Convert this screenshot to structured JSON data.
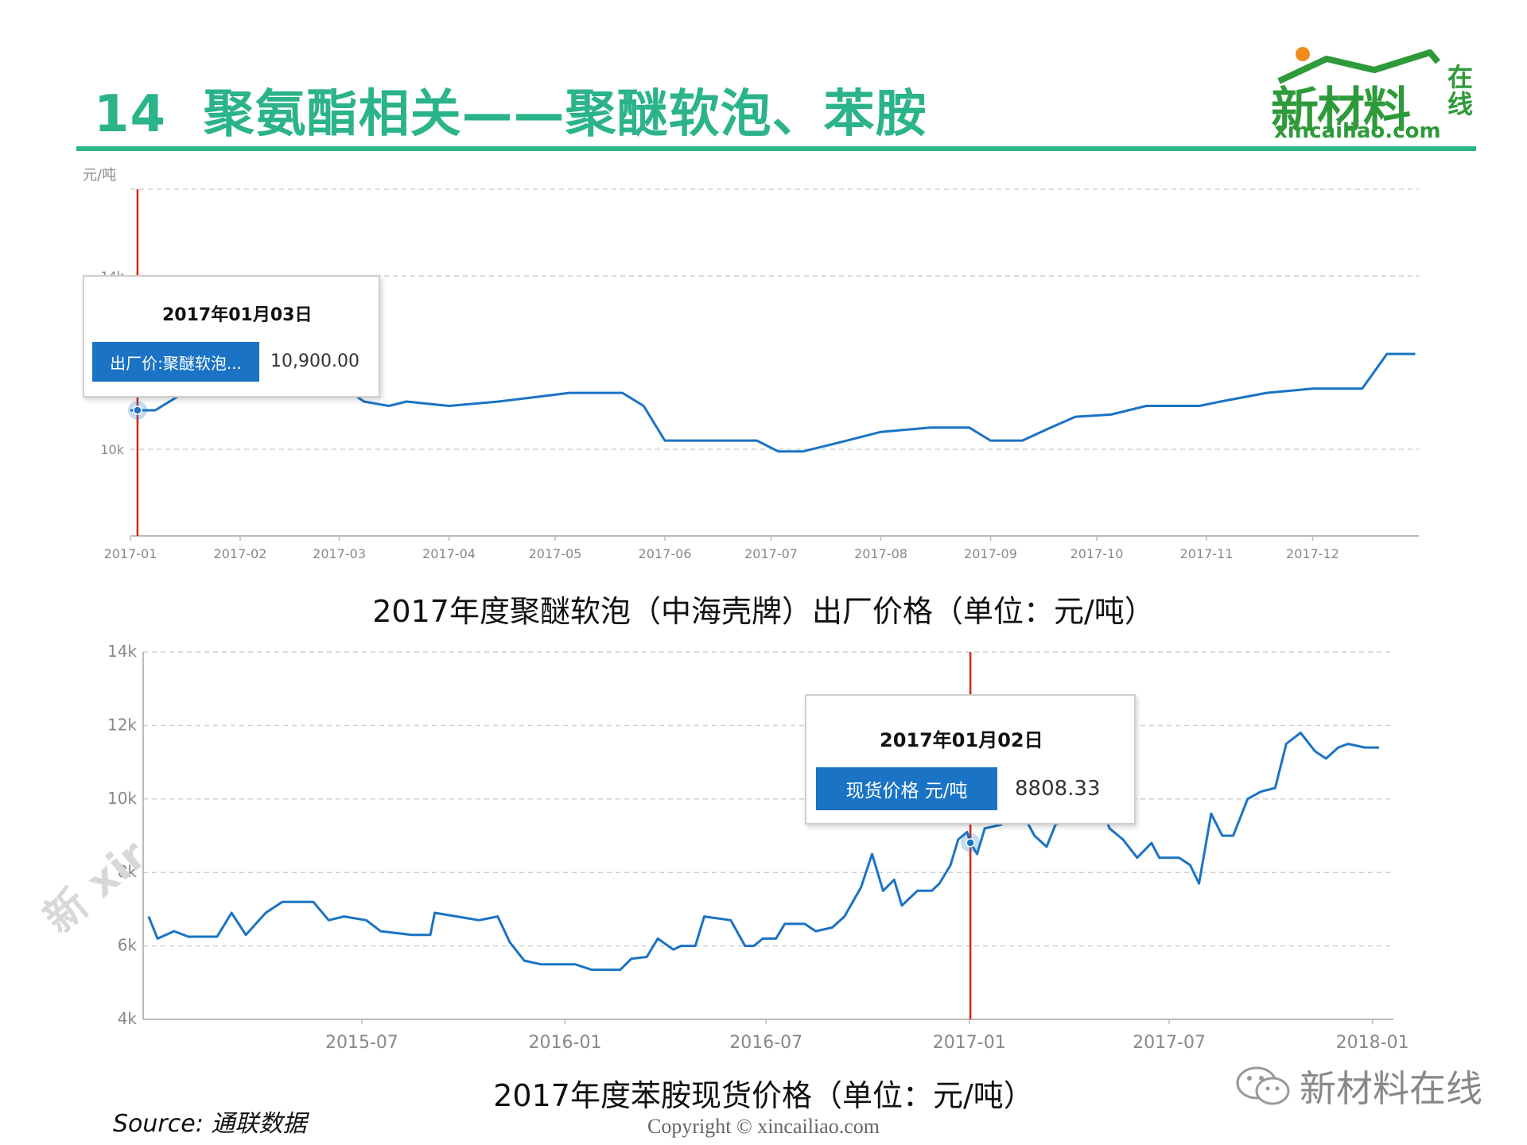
{
  "slide": {
    "number": "14",
    "title": "聚氨酯相关——聚醚软泡、苯胺"
  },
  "logo": {
    "main": "新材料",
    "side": "在线",
    "url": "xincailiao.com"
  },
  "colors": {
    "accent": "#2bb38a",
    "series": "#1a73c4",
    "marker": "#d9251c",
    "grid": "#cccccc"
  },
  "chart_data": [
    {
      "type": "line",
      "caption": "2017年度聚醚软泡（中海壳牌）出厂价格（单位：元/吨）",
      "ylabel": "元/吨",
      "y_ticks": [
        {
          "v": 10000,
          "label": "10k"
        },
        {
          "v": 14000,
          "label": "14k"
        }
      ],
      "ylim": [
        8000,
        16000
      ],
      "x_ticks": [
        {
          "t": "2017-01-01",
          "label": "2017-01"
        },
        {
          "t": "2017-02-01",
          "label": "2017-02"
        },
        {
          "t": "2017-03-01",
          "label": "2017-03"
        },
        {
          "t": "2017-04-01",
          "label": "2017-04"
        },
        {
          "t": "2017-05-01",
          "label": "2017-05"
        },
        {
          "t": "2017-06-01",
          "label": "2017-06"
        },
        {
          "t": "2017-07-01",
          "label": "2017-07"
        },
        {
          "t": "2017-08-01",
          "label": "2017-08"
        },
        {
          "t": "2017-09-01",
          "label": "2017-09"
        },
        {
          "t": "2017-10-01",
          "label": "2017-10"
        },
        {
          "t": "2017-11-01",
          "label": "2017-11"
        },
        {
          "t": "2017-12-01",
          "label": "2017-12"
        }
      ],
      "xlim": [
        "2017-01-01",
        "2017-12-31"
      ],
      "grid": "horizontal dashed",
      "series": [
        {
          "name": "出厂价:聚醚软泡...",
          "points": [
            [
              "2017-01-01",
              10900
            ],
            [
              "2017-01-08",
              10900
            ],
            [
              "2017-01-14",
              11200
            ],
            [
              "2017-01-20",
              11500
            ],
            [
              "2017-01-27",
              11700
            ],
            [
              "2017-02-05",
              11800
            ],
            [
              "2017-02-12",
              12000
            ],
            [
              "2017-02-22",
              12000
            ],
            [
              "2017-03-01",
              11500
            ],
            [
              "2017-03-08",
              11100
            ],
            [
              "2017-03-15",
              11000
            ],
            [
              "2017-03-20",
              11100
            ],
            [
              "2017-04-01",
              11000
            ],
            [
              "2017-04-15",
              11100
            ],
            [
              "2017-04-25",
              11200
            ],
            [
              "2017-05-05",
              11300
            ],
            [
              "2017-05-20",
              11300
            ],
            [
              "2017-05-26",
              11000
            ],
            [
              "2017-06-01",
              10200
            ],
            [
              "2017-06-15",
              10200
            ],
            [
              "2017-06-27",
              10200
            ],
            [
              "2017-07-03",
              9950
            ],
            [
              "2017-07-10",
              9950
            ],
            [
              "2017-07-20",
              10150
            ],
            [
              "2017-08-01",
              10400
            ],
            [
              "2017-08-15",
              10500
            ],
            [
              "2017-08-26",
              10500
            ],
            [
              "2017-09-01",
              10200
            ],
            [
              "2017-09-10",
              10200
            ],
            [
              "2017-09-18",
              10500
            ],
            [
              "2017-09-25",
              10750
            ],
            [
              "2017-10-05",
              10800
            ],
            [
              "2017-10-15",
              11000
            ],
            [
              "2017-10-30",
              11000
            ],
            [
              "2017-11-05",
              11100
            ],
            [
              "2017-11-18",
              11300
            ],
            [
              "2017-12-01",
              11400
            ],
            [
              "2017-12-15",
              11400
            ],
            [
              "2017-12-22",
              12200
            ],
            [
              "2017-12-30",
              12200
            ]
          ]
        }
      ],
      "tooltip": {
        "date": "2017年01月03日",
        "label": "出厂价:聚醚软泡...",
        "value": "10,900.00"
      }
    },
    {
      "type": "line",
      "caption": "2017年度苯胺现货价格（单位：元/吨）",
      "y_ticks": [
        {
          "v": 4000,
          "label": "4k"
        },
        {
          "v": 6000,
          "label": "6k"
        },
        {
          "v": 8000,
          "label": "8k"
        },
        {
          "v": 10000,
          "label": "10k"
        },
        {
          "v": 12000,
          "label": "12k"
        },
        {
          "v": 14000,
          "label": "14k"
        }
      ],
      "ylim": [
        4000,
        14000
      ],
      "x_ticks": [
        {
          "t": "2015-07-01",
          "label": "2015-07"
        },
        {
          "t": "2016-01-01",
          "label": "2016-01"
        },
        {
          "t": "2016-07-01",
          "label": "2016-07"
        },
        {
          "t": "2017-01-01",
          "label": "2017-01"
        },
        {
          "t": "2017-07-01",
          "label": "2017-07"
        },
        {
          "t": "2018-01-01",
          "label": "2018-01"
        }
      ],
      "xlim": [
        "2014-12-15",
        "2018-01-20"
      ],
      "grid": "horizontal dashed",
      "series": [
        {
          "name": "现货价格 元/吨",
          "points": [
            [
              "2014-12-20",
              6800
            ],
            [
              "2014-12-28",
              6200
            ],
            [
              "2015-01-12",
              6400
            ],
            [
              "2015-01-25",
              6250
            ],
            [
              "2015-02-20",
              6250
            ],
            [
              "2015-03-05",
              6900
            ],
            [
              "2015-03-18",
              6300
            ],
            [
              "2015-04-05",
              6900
            ],
            [
              "2015-04-20",
              7200
            ],
            [
              "2015-05-18",
              7200
            ],
            [
              "2015-06-01",
              6700
            ],
            [
              "2015-06-15",
              6800
            ],
            [
              "2015-07-05",
              6700
            ],
            [
              "2015-07-18",
              6400
            ],
            [
              "2015-08-15",
              6300
            ],
            [
              "2015-09-01",
              6300
            ],
            [
              "2015-09-05",
              6900
            ],
            [
              "2015-09-25",
              6800
            ],
            [
              "2015-10-15",
              6700
            ],
            [
              "2015-11-01",
              6800
            ],
            [
              "2015-11-12",
              6100
            ],
            [
              "2015-11-25",
              5600
            ],
            [
              "2015-12-10",
              5500
            ],
            [
              "2016-01-10",
              5500
            ],
            [
              "2016-01-25",
              5350
            ],
            [
              "2016-02-20",
              5350
            ],
            [
              "2016-03-01",
              5650
            ],
            [
              "2016-03-15",
              5700
            ],
            [
              "2016-03-25",
              6200
            ],
            [
              "2016-04-08",
              5900
            ],
            [
              "2016-04-15",
              6000
            ],
            [
              "2016-04-28",
              6000
            ],
            [
              "2016-05-06",
              6800
            ],
            [
              "2016-05-30",
              6700
            ],
            [
              "2016-06-12",
              6000
            ],
            [
              "2016-06-20",
              6000
            ],
            [
              "2016-06-28",
              6200
            ],
            [
              "2016-07-10",
              6200
            ],
            [
              "2016-07-18",
              6600
            ],
            [
              "2016-08-05",
              6600
            ],
            [
              "2016-08-15",
              6400
            ],
            [
              "2016-08-30",
              6500
            ],
            [
              "2016-09-10",
              6800
            ],
            [
              "2016-09-25",
              7600
            ],
            [
              "2016-10-05",
              8500
            ],
            [
              "2016-10-15",
              7500
            ],
            [
              "2016-10-25",
              7800
            ],
            [
              "2016-11-01",
              7100
            ],
            [
              "2016-11-15",
              7500
            ],
            [
              "2016-11-28",
              7500
            ],
            [
              "2016-12-05",
              7700
            ],
            [
              "2016-12-15",
              8200
            ],
            [
              "2016-12-22",
              8900
            ],
            [
              "2016-12-30",
              9100
            ],
            [
              "2017-01-02",
              8808.33
            ],
            [
              "2017-01-08",
              8500
            ],
            [
              "2017-01-15",
              9200
            ],
            [
              "2017-01-30",
              9300
            ],
            [
              "2017-02-10",
              10000
            ],
            [
              "2017-02-20",
              9500
            ],
            [
              "2017-03-01",
              9000
            ],
            [
              "2017-03-12",
              8700
            ],
            [
              "2017-03-20",
              9300
            ],
            [
              "2017-03-28",
              9400
            ],
            [
              "2017-04-10",
              10000
            ],
            [
              "2017-04-28",
              10000
            ],
            [
              "2017-05-08",
              9200
            ],
            [
              "2017-05-20",
              8900
            ],
            [
              "2017-06-02",
              8400
            ],
            [
              "2017-06-15",
              8800
            ],
            [
              "2017-06-22",
              8400
            ],
            [
              "2017-07-10",
              8400
            ],
            [
              "2017-07-20",
              8200
            ],
            [
              "2017-07-28",
              7700
            ],
            [
              "2017-08-08",
              9600
            ],
            [
              "2017-08-18",
              9000
            ],
            [
              "2017-08-28",
              9000
            ],
            [
              "2017-09-10",
              10000
            ],
            [
              "2017-09-22",
              10200
            ],
            [
              "2017-10-05",
              10300
            ],
            [
              "2017-10-15",
              11500
            ],
            [
              "2017-10-28",
              11800
            ],
            [
              "2017-11-10",
              11300
            ],
            [
              "2017-11-20",
              11100
            ],
            [
              "2017-12-01",
              11400
            ],
            [
              "2017-12-10",
              11500
            ],
            [
              "2017-12-25",
              11400
            ],
            [
              "2018-01-07",
              11400
            ]
          ]
        }
      ],
      "tooltip": {
        "date": "2017年01月02日",
        "label": "现货价格 元/吨",
        "value": "8808.33"
      }
    }
  ],
  "source": "Source: 通联数据",
  "copyright": "Copyright © xincailiao.com",
  "wechat": {
    "label": "新材料在线"
  },
  "watermark": "新 xir"
}
